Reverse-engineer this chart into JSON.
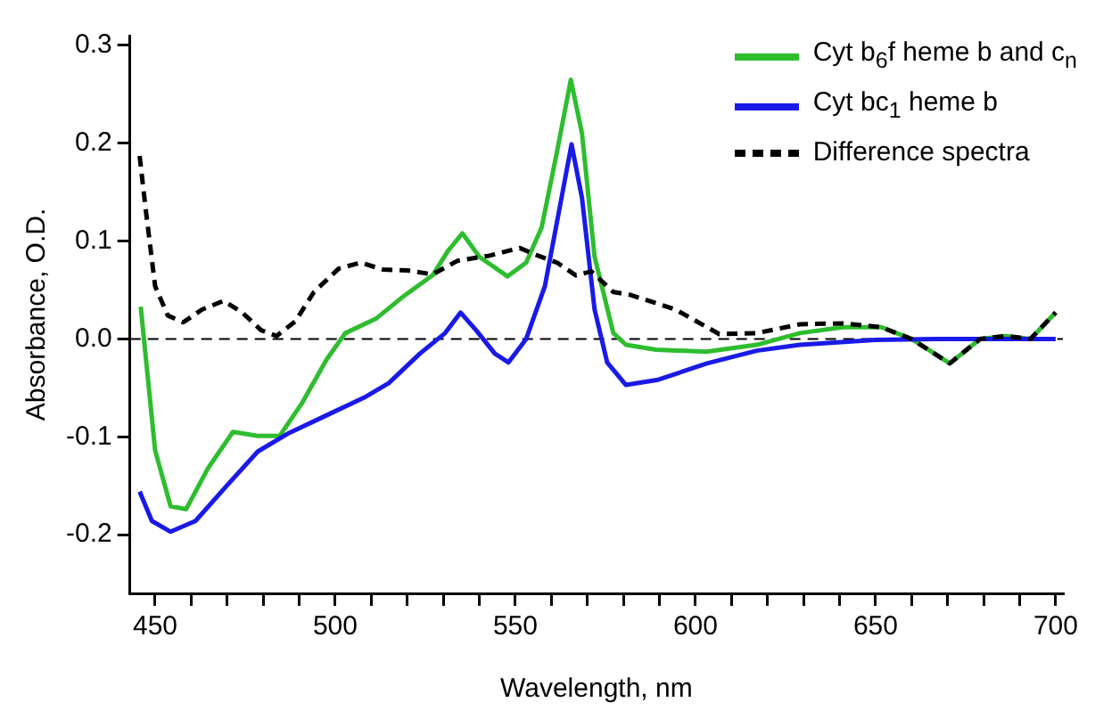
{
  "chart_data": {
    "type": "line",
    "xlabel": "Wavelength, nm",
    "ylabel": "Absorbance, O.D.",
    "xlim": [
      443,
      702
    ],
    "ylim": [
      -0.26,
      0.31
    ],
    "xticks": [
      450,
      {
        "value": 460,
        "label": null
      },
      {
        "value": 470,
        "label": null
      },
      {
        "value": 480,
        "label": null
      },
      {
        "value": 490,
        "label": null
      },
      500,
      {
        "value": 510,
        "label": null
      },
      {
        "value": 520,
        "label": null
      },
      {
        "value": 530,
        "label": null
      },
      {
        "value": 540,
        "label": null
      },
      550,
      {
        "value": 560,
        "label": null
      },
      {
        "value": 570,
        "label": null
      },
      {
        "value": 580,
        "label": null
      },
      {
        "value": 590,
        "label": null
      },
      600,
      {
        "value": 610,
        "label": null
      },
      {
        "value": 620,
        "label": null
      },
      {
        "value": 630,
        "label": null
      },
      {
        "value": 640,
        "label": null
      },
      650,
      {
        "value": 660,
        "label": null
      },
      {
        "value": 670,
        "label": null
      },
      {
        "value": 680,
        "label": null
      },
      {
        "value": 690,
        "label": null
      },
      700
    ],
    "yticks": [
      -0.2,
      -0.1,
      {
        "value": 0,
        "label": "0.0"
      },
      0.1,
      0.2,
      0.3
    ],
    "legend": "top right",
    "marker": "none",
    "ref_lines": [
      {
        "axis": "y",
        "value": 0,
        "color": "#000000",
        "line_style": "dashed"
      }
    ],
    "series": [
      {
        "name": "Cyt b$_{6}$f heme b and c$_{n}$",
        "color": "#2ebd2e",
        "line_style": "solid",
        "x": [
          446,
          450,
          454.3,
          458.6,
          464.7,
          471.6,
          478.5,
          484.6,
          490.7,
          497.6,
          502.8,
          511.4,
          518.4,
          527,
          531.3,
          535.3,
          540,
          547.8,
          553,
          557.3,
          561.6,
          565.4,
          568.5,
          572,
          577.2,
          580.7,
          589,
          603,
          617,
          629,
          641,
          651.6,
          660,
          670.6,
          679,
          686,
          693,
          700
        ],
        "values": [
          0.033,
          -0.114,
          -0.171,
          -0.174,
          -0.132,
          -0.095,
          -0.099,
          -0.099,
          -0.066,
          -0.021,
          0.006,
          0.021,
          0.042,
          0.065,
          0.09,
          0.108,
          0.084,
          0.064,
          0.078,
          0.114,
          0.192,
          0.265,
          0.21,
          0.084,
          0.006,
          -0.006,
          -0.011,
          -0.013,
          -0.006,
          0.006,
          0.012,
          0.012,
          0,
          -0.025,
          0,
          0.003,
          0,
          0.027
        ]
      },
      {
        "name": "Cyt bc$_{1}$ heme b",
        "color": "#1a1ae6",
        "line_style": "solid",
        "x": [
          445.7,
          449.1,
          454.3,
          461.2,
          469.9,
          478.5,
          487.2,
          497.6,
          508,
          514.9,
          523.5,
          530.5,
          534.8,
          539.1,
          544.3,
          548.1,
          553,
          558.2,
          562.5,
          565.6,
          568.5,
          572,
          575.5,
          580.7,
          589.3,
          603.2,
          617,
          629,
          650,
          667,
          700
        ],
        "values": [
          -0.156,
          -0.186,
          -0.197,
          -0.186,
          -0.15,
          -0.115,
          -0.096,
          -0.078,
          -0.06,
          -0.045,
          -0.015,
          0.006,
          0.027,
          0.009,
          -0.015,
          -0.024,
          0,
          0.054,
          0.138,
          0.199,
          0.144,
          0.03,
          -0.024,
          -0.047,
          -0.042,
          -0.025,
          -0.012,
          -0.006,
          -0.001,
          0,
          0
        ]
      },
      {
        "name": "Difference spectra",
        "color": "#000000",
        "line_style": "dashed",
        "x": [
          445.7,
          447.4,
          450,
          453.5,
          457.8,
          463,
          469,
          474.2,
          479.4,
          483.7,
          488.9,
          494.1,
          501,
          507.1,
          513.2,
          520.1,
          527,
          534,
          542.6,
          551.2,
          556.4,
          561.6,
          566.8,
          571.1,
          577.2,
          582,
          594.5,
          606.6,
          617,
          629,
          641,
          651.6,
          660,
          670.6,
          679,
          686,
          693,
          700
        ],
        "values": [
          0.187,
          0.132,
          0.054,
          0.024,
          0.017,
          0.03,
          0.039,
          0.027,
          0.009,
          0.003,
          0.018,
          0.048,
          0.072,
          0.078,
          0.071,
          0.07,
          0.066,
          0.08,
          0.085,
          0.093,
          0.085,
          0.078,
          0.065,
          0.069,
          0.048,
          0.045,
          0.03,
          0.005,
          0.006,
          0.015,
          0.016,
          0.012,
          0,
          -0.025,
          0,
          0.003,
          0,
          0.027
        ]
      }
    ]
  }
}
